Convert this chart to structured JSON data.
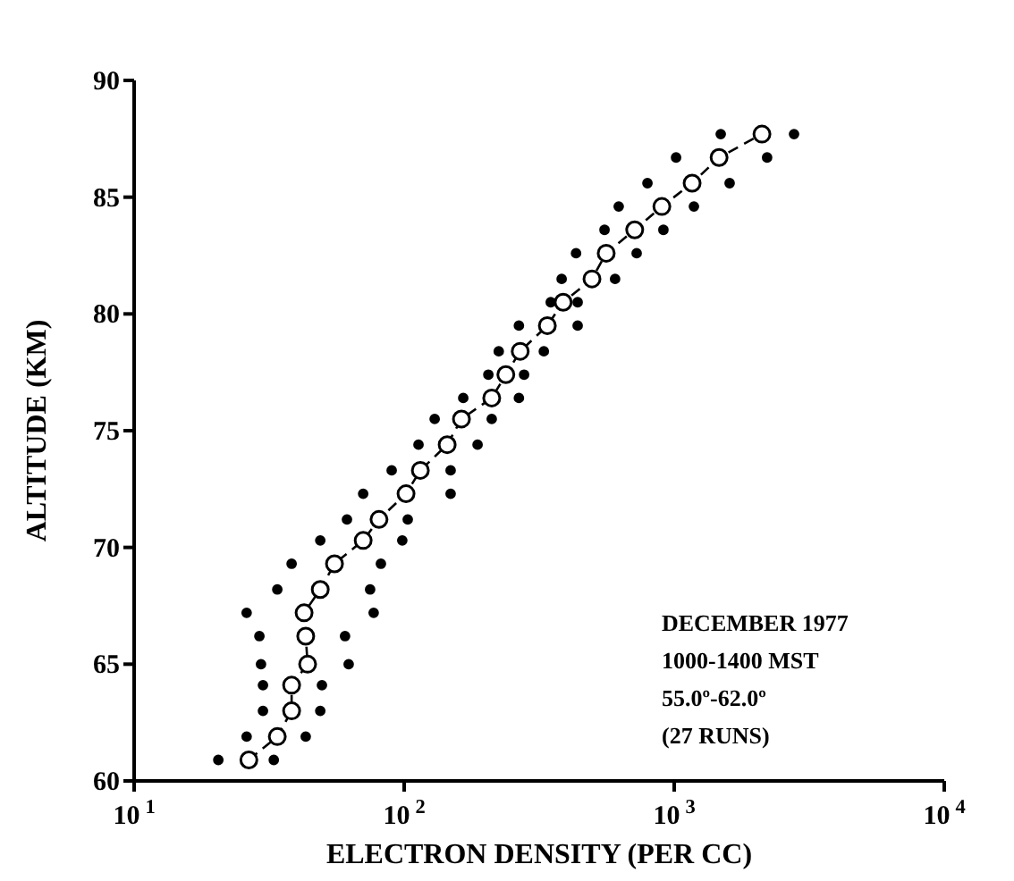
{
  "chart_data": {
    "type": "scatter",
    "xlabel": "ELECTRON DENSITY (PER CC)",
    "ylabel": "ALTITUDE (KM)",
    "log": "x",
    "xlim": [
      10,
      10000
    ],
    "xticks": [
      {
        "value": 10,
        "label": "10$^{1}$"
      },
      {
        "value": 100,
        "label": "10$^{2}$"
      },
      {
        "value": 1000,
        "label": "10$^{3}$"
      },
      {
        "value": 10000,
        "label": "10$^{4}$"
      }
    ],
    "ylim": [
      60,
      90
    ],
    "yticks": [
      60,
      65,
      70,
      75,
      80,
      85,
      90
    ],
    "grid": false,
    "legend": false,
    "annotations": [
      "DECEMBER 1977",
      "1000-1400 MST",
      "55.0º-62.0º",
      "(27 RUNS)"
    ],
    "series": [
      {
        "marker": "circle",
        "color": "#000000",
        "x": [
          20.5,
          26.1,
          30.0,
          30.0,
          29.5,
          29.1,
          26.1,
          33.9,
          38.3,
          48.9,
          61.4,
          70.5,
          89.9,
          113,
          129.7,
          165.5,
          205,
          224,
          266,
          349,
          383,
          433,
          552,
          623,
          796,
          1016,
          1487
        ],
        "values": [
          60.9,
          61.9,
          63.0,
          64.1,
          65.0,
          66.2,
          67.2,
          68.2,
          69.3,
          70.3,
          71.2,
          72.3,
          73.3,
          74.4,
          75.5,
          76.4,
          77.4,
          78.4,
          79.5,
          80.5,
          81.5,
          82.6,
          83.6,
          84.6,
          85.6,
          86.7,
          87.7
        ]
      },
      {
        "marker": "circle",
        "color": "#000000",
        "x": [
          32.9,
          43.2,
          48.9,
          49.6,
          62.3,
          60.4,
          77.1,
          74.8,
          82.0,
          98.4,
          103.1,
          148.6,
          148.6,
          187,
          211,
          266,
          278,
          329,
          439,
          439,
          604,
          726,
          912,
          1183,
          1604,
          2208,
          2778
        ],
        "values": [
          60.9,
          61.9,
          63.0,
          64.1,
          65.0,
          66.2,
          67.2,
          68.2,
          69.3,
          70.3,
          71.2,
          72.3,
          73.3,
          74.4,
          75.5,
          76.4,
          77.4,
          78.4,
          79.5,
          80.5,
          81.5,
          82.6,
          83.6,
          84.6,
          85.6,
          86.7,
          87.7
        ]
      },
      {
        "type": "line",
        "marker": "circle",
        "line_style": "dashed",
        "color": "#000000",
        "x": [
          26.6,
          33.9,
          38.3,
          38.3,
          43.9,
          43.2,
          42.6,
          48.9,
          55.2,
          70.5,
          80.7,
          101.6,
          114.8,
          144.3,
          163,
          211,
          238,
          269,
          339,
          388,
          496,
          560,
          714,
          900,
          1165,
          1466,
          2113
        ],
        "values": [
          60.9,
          61.9,
          63.0,
          64.1,
          65.0,
          66.2,
          67.2,
          68.2,
          69.3,
          70.3,
          71.2,
          72.3,
          73.3,
          74.4,
          75.5,
          76.4,
          77.4,
          78.4,
          79.5,
          80.5,
          81.5,
          82.6,
          83.6,
          84.6,
          85.6,
          86.7,
          87.7
        ]
      }
    ]
  }
}
